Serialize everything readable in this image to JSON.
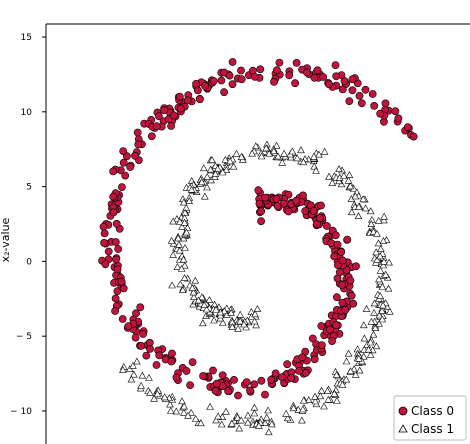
{
  "chart_data": {
    "type": "scatter",
    "title": "",
    "xlabel": "",
    "ylabel": "x₂-value",
    "ylim": [
      -11.5,
      16
    ],
    "xlim": [
      -13,
      14.2
    ],
    "yticks": [
      15,
      10,
      5,
      0,
      -5,
      -10
    ],
    "ytick_labels": [
      "15",
      "10",
      "5",
      "0",
      "− 5",
      "− 10"
    ],
    "grid": false,
    "legend_placement": "bottom-right",
    "series": [
      {
        "name": "Class 0",
        "marker": "circle",
        "color": "#c0143c",
        "edge_color": "#000000",
        "spiral": {
          "turns": [
            [
              0,
              0.5
            ]
          ],
          "t_start": 0.3,
          "t_end": 2.6,
          "r_start": 3.8,
          "r_end": 14.0,
          "angle_offset_deg": -90,
          "n_points": 450
        }
      },
      {
        "name": "Class 1",
        "marker": "triangle",
        "color": "#ffffff",
        "edge_color": "#000000",
        "spiral": {
          "t_start": 0.3,
          "t_end": 2.6,
          "r_start": 3.8,
          "r_end": 11.7,
          "angle_offset_deg": 90,
          "n_points": 450
        }
      }
    ]
  }
}
